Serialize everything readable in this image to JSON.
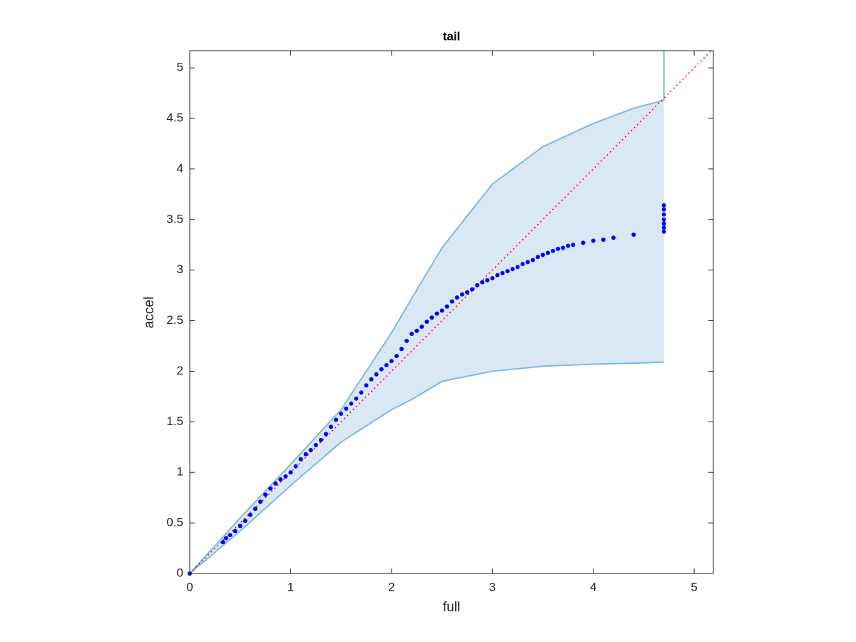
{
  "chart_data": {
    "type": "scatter",
    "title": "tail",
    "x_label": "full",
    "y_label": "accel",
    "xlim": [
      0,
      5.19
    ],
    "ylim": [
      0,
      5.17
    ],
    "xticks": [
      0,
      1,
      2,
      3,
      4,
      5
    ],
    "yticks": [
      0,
      0.5,
      1,
      1.5,
      2,
      2.5,
      3,
      3.5,
      4,
      4.5,
      5
    ],
    "grid": false,
    "band": {
      "color": "#7fb8dc",
      "fill": "#d9e8f4",
      "x": [
        0,
        0.5,
        1,
        1.5,
        2,
        2.2,
        2.5,
        3,
        3.5,
        4,
        4.4,
        4.7,
        4.7
      ],
      "upper": [
        0,
        0.55,
        1.08,
        1.62,
        2.38,
        2.72,
        3.22,
        3.85,
        4.22,
        4.45,
        4.6,
        4.68,
        5.17
      ],
      "lower": [
        0,
        0.42,
        0.87,
        1.3,
        1.62,
        1.72,
        1.9,
        2.0,
        2.05,
        2.07,
        2.08,
        2.09,
        2.09
      ]
    },
    "reference": {
      "color": "#ff0000",
      "x": [
        0,
        5.19
      ],
      "y": [
        0,
        5.19
      ]
    },
    "points": {
      "color": "#0000ff",
      "x": [
        0,
        0.33,
        0.36,
        0.4,
        0.45,
        0.5,
        0.55,
        0.6,
        0.65,
        0.7,
        0.75,
        0.8,
        0.85,
        0.9,
        0.95,
        1.0,
        1.05,
        1.1,
        1.15,
        1.2,
        1.25,
        1.3,
        1.35,
        1.4,
        1.45,
        1.5,
        1.55,
        1.6,
        1.65,
        1.7,
        1.75,
        1.8,
        1.85,
        1.9,
        1.95,
        2.0,
        2.05,
        2.1,
        2.15,
        2.2,
        2.25,
        2.3,
        2.35,
        2.4,
        2.45,
        2.5,
        2.55,
        2.6,
        2.65,
        2.7,
        2.75,
        2.8,
        2.85,
        2.9,
        2.95,
        3.0,
        3.05,
        3.1,
        3.15,
        3.2,
        3.25,
        3.3,
        3.35,
        3.4,
        3.45,
        3.5,
        3.55,
        3.6,
        3.65,
        3.7,
        3.75,
        3.8,
        3.9,
        4.0,
        4.1,
        4.2,
        4.4,
        4.7,
        4.7,
        4.7,
        4.7,
        4.7,
        4.7,
        4.7
      ],
      "y": [
        0,
        0.31,
        0.35,
        0.38,
        0.42,
        0.47,
        0.52,
        0.58,
        0.64,
        0.71,
        0.78,
        0.84,
        0.89,
        0.93,
        0.96,
        1.0,
        1.06,
        1.13,
        1.18,
        1.22,
        1.27,
        1.32,
        1.38,
        1.45,
        1.52,
        1.58,
        1.63,
        1.68,
        1.73,
        1.79,
        1.86,
        1.92,
        1.97,
        2.02,
        2.06,
        2.1,
        2.15,
        2.22,
        2.3,
        2.37,
        2.4,
        2.44,
        2.49,
        2.53,
        2.57,
        2.6,
        2.64,
        2.69,
        2.73,
        2.76,
        2.78,
        2.81,
        2.85,
        2.88,
        2.9,
        2.92,
        2.95,
        2.97,
        2.99,
        3.01,
        3.03,
        3.06,
        3.08,
        3.1,
        3.13,
        3.15,
        3.17,
        3.19,
        3.21,
        3.22,
        3.24,
        3.25,
        3.27,
        3.29,
        3.3,
        3.32,
        3.35,
        3.38,
        3.42,
        3.46,
        3.5,
        3.55,
        3.6,
        3.64
      ]
    }
  }
}
